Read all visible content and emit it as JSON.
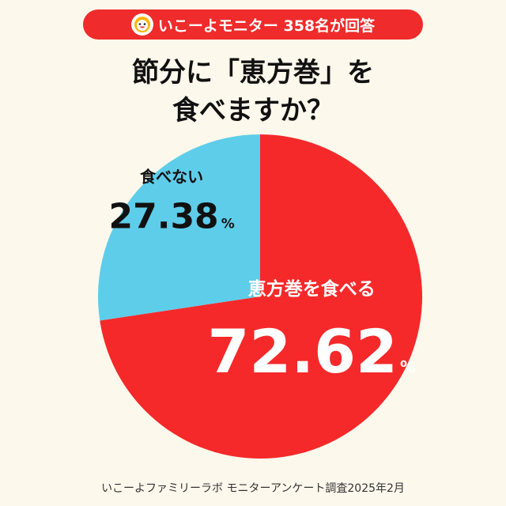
{
  "header": {
    "logo_icon": "smiling-face-logo-icon",
    "survey_label": "いこーよモニター 358名が回答"
  },
  "title": {
    "line1": "節分に「恵方巻」を",
    "line2": "食べますか？"
  },
  "chart_data": {
    "type": "pie",
    "title": "節分に「恵方巻」を食べますか？",
    "slices": [
      {
        "label": "恵方巻を食べる",
        "value": 72.62,
        "value_text": "72.62",
        "unit": "%",
        "color": "#f5292a"
      },
      {
        "label": "食べない",
        "value": 27.38,
        "value_text": "27.38",
        "unit": "%",
        "color": "#5ecdea"
      }
    ],
    "start_angle_deg": 0,
    "direction": "clockwise",
    "legend": "none"
  },
  "footer": {
    "source": "いこーよファミリーラボ モニターアンケート調査2025年2月"
  }
}
